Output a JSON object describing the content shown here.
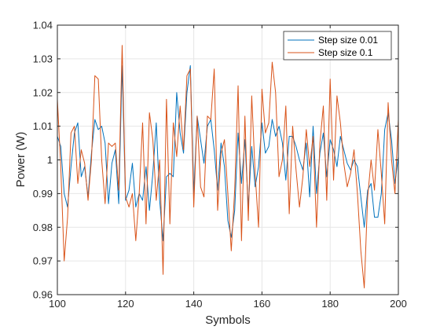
{
  "chart_data": {
    "type": "line",
    "xlabel": "Symbols",
    "ylabel": "Power (W)",
    "xlim": [
      100,
      200
    ],
    "ylim": [
      0.96,
      1.04
    ],
    "xticks": [
      100,
      120,
      140,
      160,
      180,
      200
    ],
    "yticks": [
      0.96,
      0.97,
      0.98,
      0.99,
      1.0,
      1.01,
      1.02,
      1.03,
      1.04
    ],
    "ytick_labels": [
      "0.96",
      "0.97",
      "0.98",
      "0.99",
      "1",
      "1.01",
      "1.02",
      "1.03",
      "1.04"
    ],
    "xtick_labels": [
      "100",
      "120",
      "140",
      "160",
      "180",
      "200"
    ],
    "grid": true,
    "legend_position": "top-right",
    "x": [
      100,
      101,
      102,
      103,
      104,
      105,
      106,
      107,
      108,
      109,
      110,
      111,
      112,
      113,
      114,
      115,
      116,
      117,
      118,
      119,
      120,
      121,
      122,
      123,
      124,
      125,
      126,
      127,
      128,
      129,
      130,
      131,
      132,
      133,
      134,
      135,
      136,
      137,
      138,
      139,
      140,
      141,
      142,
      143,
      144,
      145,
      146,
      147,
      148,
      149,
      150,
      151,
      152,
      153,
      154,
      155,
      156,
      157,
      158,
      159,
      160,
      161,
      162,
      163,
      164,
      165,
      166,
      167,
      168,
      169,
      170,
      171,
      172,
      173,
      174,
      175,
      176,
      177,
      178,
      179,
      180,
      181,
      182,
      183,
      184,
      185,
      186,
      187,
      188,
      189,
      190,
      191,
      192,
      193,
      194,
      195,
      196,
      197,
      198,
      199,
      200
    ],
    "series": [
      {
        "name": "Step size 0.01",
        "color": "#0072BD",
        "values": [
          1.007,
          1.004,
          0.99,
          0.986,
          0.998,
          1.008,
          1.011,
          0.995,
          0.998,
          0.989,
          1.002,
          1.012,
          1.009,
          1.01,
          1.005,
          0.987,
          0.999,
          1.003,
          0.987,
          1.028,
          0.988,
          0.991,
          0.999,
          0.986,
          0.99,
          0.988,
          0.998,
          0.985,
          0.996,
          1.011,
          0.988,
          0.976,
          0.995,
          0.996,
          0.995,
          1.02,
          1.008,
          1.002,
          1.02,
          1.028,
          0.99,
          1.013,
          1.006,
          0.999,
          1.01,
          1.012,
          1.003,
          0.991,
          1.005,
          0.998,
          0.982,
          0.977,
          0.985,
          1.008,
          0.993,
          1.006,
          0.986,
          1.004,
          0.992,
          0.998,
          1.011,
          1.002,
          1.004,
          1.012,
          1.007,
          1.01,
          1.005,
          0.994,
          1.007,
          1.007,
          1.004,
          1.0,
          0.997,
          1.005,
          0.989,
          1.01,
          0.99,
          1.002,
          1.008,
          0.995,
          1.006,
          1.003,
          0.998,
          1.007,
          1.003,
          0.999,
          0.997,
          1.0,
          0.998,
          0.989,
          0.98,
          0.991,
          0.993,
          0.983,
          0.983,
          0.99,
          1.009,
          1.014,
          1.006,
          0.993,
          1.001
        ]
      },
      {
        "name": "Step size 0.1",
        "color": "#D95319",
        "values": [
          1.018,
          0.998,
          0.97,
          0.983,
          1.008,
          1.01,
          0.993,
          1.003,
          0.999,
          0.988,
          1.0,
          1.025,
          1.024,
          1.0,
          0.987,
          1.005,
          1.004,
          1.005,
          0.991,
          1.034,
          0.989,
          0.986,
          0.99,
          0.976,
          0.99,
          1.011,
          0.981,
          1.014,
          1.006,
          0.988,
          1.0,
          0.966,
          1.018,
          0.981,
          1.011,
          1.001,
          1.016,
          1.003,
          1.025,
          1.027,
          0.986,
          1.013,
          0.992,
          0.989,
          1.013,
          1.012,
          1.027,
          0.985,
          1.002,
          1.006,
          0.99,
          0.973,
          0.991,
          1.022,
          0.976,
          1.013,
          0.982,
          1.019,
          0.996,
          0.98,
          1.021,
          1.008,
          1.011,
          1.029,
          1.02,
          0.995,
          1.0,
          1.016,
          0.984,
          1.01,
          0.997,
          0.986,
          0.995,
          1.009,
          0.998,
          1.007,
          0.98,
          1.005,
          1.016,
          0.988,
          1.024,
          0.994,
          1.019,
          1.011,
          0.999,
          0.992,
          0.996,
          1.003,
          0.99,
          0.973,
          0.962,
          0.989,
          1.0,
          0.991,
          1.009,
          0.996,
          0.981,
          1.017,
          1.0,
          0.99,
          1.012
        ]
      }
    ]
  }
}
